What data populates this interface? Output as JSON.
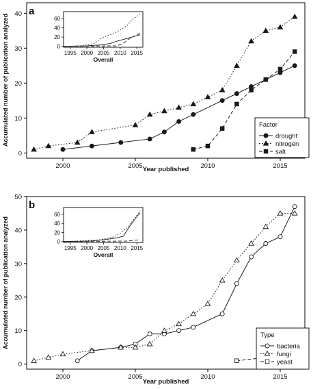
{
  "chart_data": [
    {
      "type": "line",
      "panel_label": "a",
      "xlabel": "Year published",
      "ylabel": "Accumulated number of publication analyzed",
      "xlim": [
        1997.5,
        2016.7
      ],
      "ylim": [
        -1.5,
        43
      ],
      "xticks": [
        2000,
        2005,
        2010,
        2015
      ],
      "yticks": [
        0,
        10,
        20,
        30,
        40
      ],
      "grid": false,
      "legend": {
        "title": "Factor",
        "position": "bottom-right"
      },
      "series": [
        {
          "name": "drought",
          "marker": "circle-filled",
          "dash": "solid",
          "x": [
            2000,
            2002,
            2004,
            2006,
            2007,
            2008,
            2009,
            2011,
            2012,
            2013,
            2014,
            2015,
            2016
          ],
          "y": [
            1,
            2,
            3,
            4,
            6,
            9,
            11,
            15,
            17,
            19,
            21,
            23,
            25
          ]
        },
        {
          "name": "nitrogen",
          "marker": "triangle-filled",
          "dash": "dotted",
          "x": [
            1998,
            1999,
            2001,
            2002,
            2005,
            2006,
            2007,
            2008,
            2009,
            2010,
            2011,
            2012,
            2013,
            2014,
            2015,
            2016
          ],
          "y": [
            1,
            2,
            3,
            6,
            8,
            11,
            12,
            13,
            14,
            16,
            18,
            25,
            32,
            35,
            36,
            39
          ]
        },
        {
          "name": "salt",
          "marker": "square-filled",
          "dash": "dashed",
          "x": [
            2009,
            2010,
            2011,
            2012,
            2013,
            2014,
            2015,
            2016
          ],
          "y": [
            1,
            2,
            7,
            14,
            18,
            21,
            24,
            29
          ]
        }
      ],
      "inset": {
        "title": "Overall",
        "xticks": [
          1995,
          2000,
          2005,
          2010,
          2015
        ],
        "yticks": [
          0,
          20,
          40,
          60
        ],
        "xlim": [
          1993,
          2016.8
        ],
        "ylim": [
          -2,
          75
        ],
        "series": [
          {
            "name": "drought",
            "dash": "solid",
            "x": [
              1993,
              2000,
              2004,
              2007,
              2009,
              2011,
              2013,
              2015,
              2016
            ],
            "y": [
              0,
              1,
              3,
              6,
              11,
              15,
              19,
              23,
              25
            ]
          },
          {
            "name": "nitrogen",
            "dash": "dotted",
            "x": [
              1993,
              1998,
              2002,
              2005,
              2008,
              2010,
              2012,
              2014,
              2016
            ],
            "y": [
              0,
              1,
              6,
              20,
              28,
              35,
              45,
              60,
              70
            ]
          },
          {
            "name": "salt",
            "dash": "dashed",
            "x": [
              1993,
              2009,
              2011,
              2013,
              2015,
              2016
            ],
            "y": [
              0,
              1,
              7,
              18,
              24,
              29
            ]
          }
        ]
      }
    },
    {
      "type": "line",
      "panel_label": "b",
      "xlabel": "Year published",
      "ylabel": "Accumulated number of publication analyzed",
      "xlim": [
        1997.5,
        2016.7
      ],
      "ylim": [
        -1.5,
        50
      ],
      "xticks": [
        2000,
        2005,
        2010,
        2015
      ],
      "yticks": [
        0,
        10,
        20,
        30,
        40,
        50
      ],
      "grid": false,
      "legend": {
        "title": "Type",
        "position": "bottom-right"
      },
      "series": [
        {
          "name": "bacteria",
          "marker": "circle-open",
          "dash": "solid",
          "x": [
            2001,
            2002,
            2004,
            2005,
            2006,
            2007,
            2008,
            2009,
            2011,
            2012,
            2013,
            2014,
            2015,
            2016
          ],
          "y": [
            1,
            4,
            5,
            6,
            9,
            9,
            10,
            11,
            15,
            24,
            32,
            36,
            38,
            47
          ]
        },
        {
          "name": "fungi",
          "marker": "triangle-open",
          "dash": "dotted",
          "x": [
            1998,
            1999,
            2000,
            2002,
            2004,
            2005,
            2006,
            2007,
            2008,
            2009,
            2010,
            2011,
            2012,
            2013,
            2014,
            2015,
            2016
          ],
          "y": [
            1,
            2,
            3,
            4,
            5,
            5,
            6,
            10,
            12,
            15,
            18,
            25,
            31,
            36,
            41,
            45,
            45
          ]
        },
        {
          "name": "yeast",
          "marker": "square-open",
          "dash": "dashed",
          "x": [
            2012,
            2014,
            2015,
            2016
          ],
          "y": [
            1,
            2,
            3,
            4
          ]
        }
      ],
      "inset": {
        "title": "Overall",
        "xticks": [
          1995,
          2000,
          2005,
          2010,
          2015
        ],
        "yticks": [
          0,
          20,
          40,
          60
        ],
        "xlim": [
          1993,
          2016.8
        ],
        "ylim": [
          -2,
          75
        ],
        "series": [
          {
            "name": "bacteria",
            "dash": "solid",
            "x": [
              1993,
              2001,
              2005,
              2009,
              2011,
              2012,
              2013,
              2014,
              2015,
              2016
            ],
            "y": [
              0,
              1,
              4,
              8,
              12,
              24,
              35,
              45,
              55,
              63
            ]
          },
          {
            "name": "fungi",
            "dash": "dotted",
            "x": [
              1993,
              2000,
              2004,
              2008,
              2010,
              2012,
              2014,
              2016
            ],
            "y": [
              0,
              2,
              4,
              10,
              18,
              30,
              48,
              68
            ]
          },
          {
            "name": "yeast",
            "dash": "dashed",
            "x": [
              1993,
              2012,
              2016
            ],
            "y": [
              0,
              1,
              4
            ]
          }
        ]
      }
    }
  ]
}
